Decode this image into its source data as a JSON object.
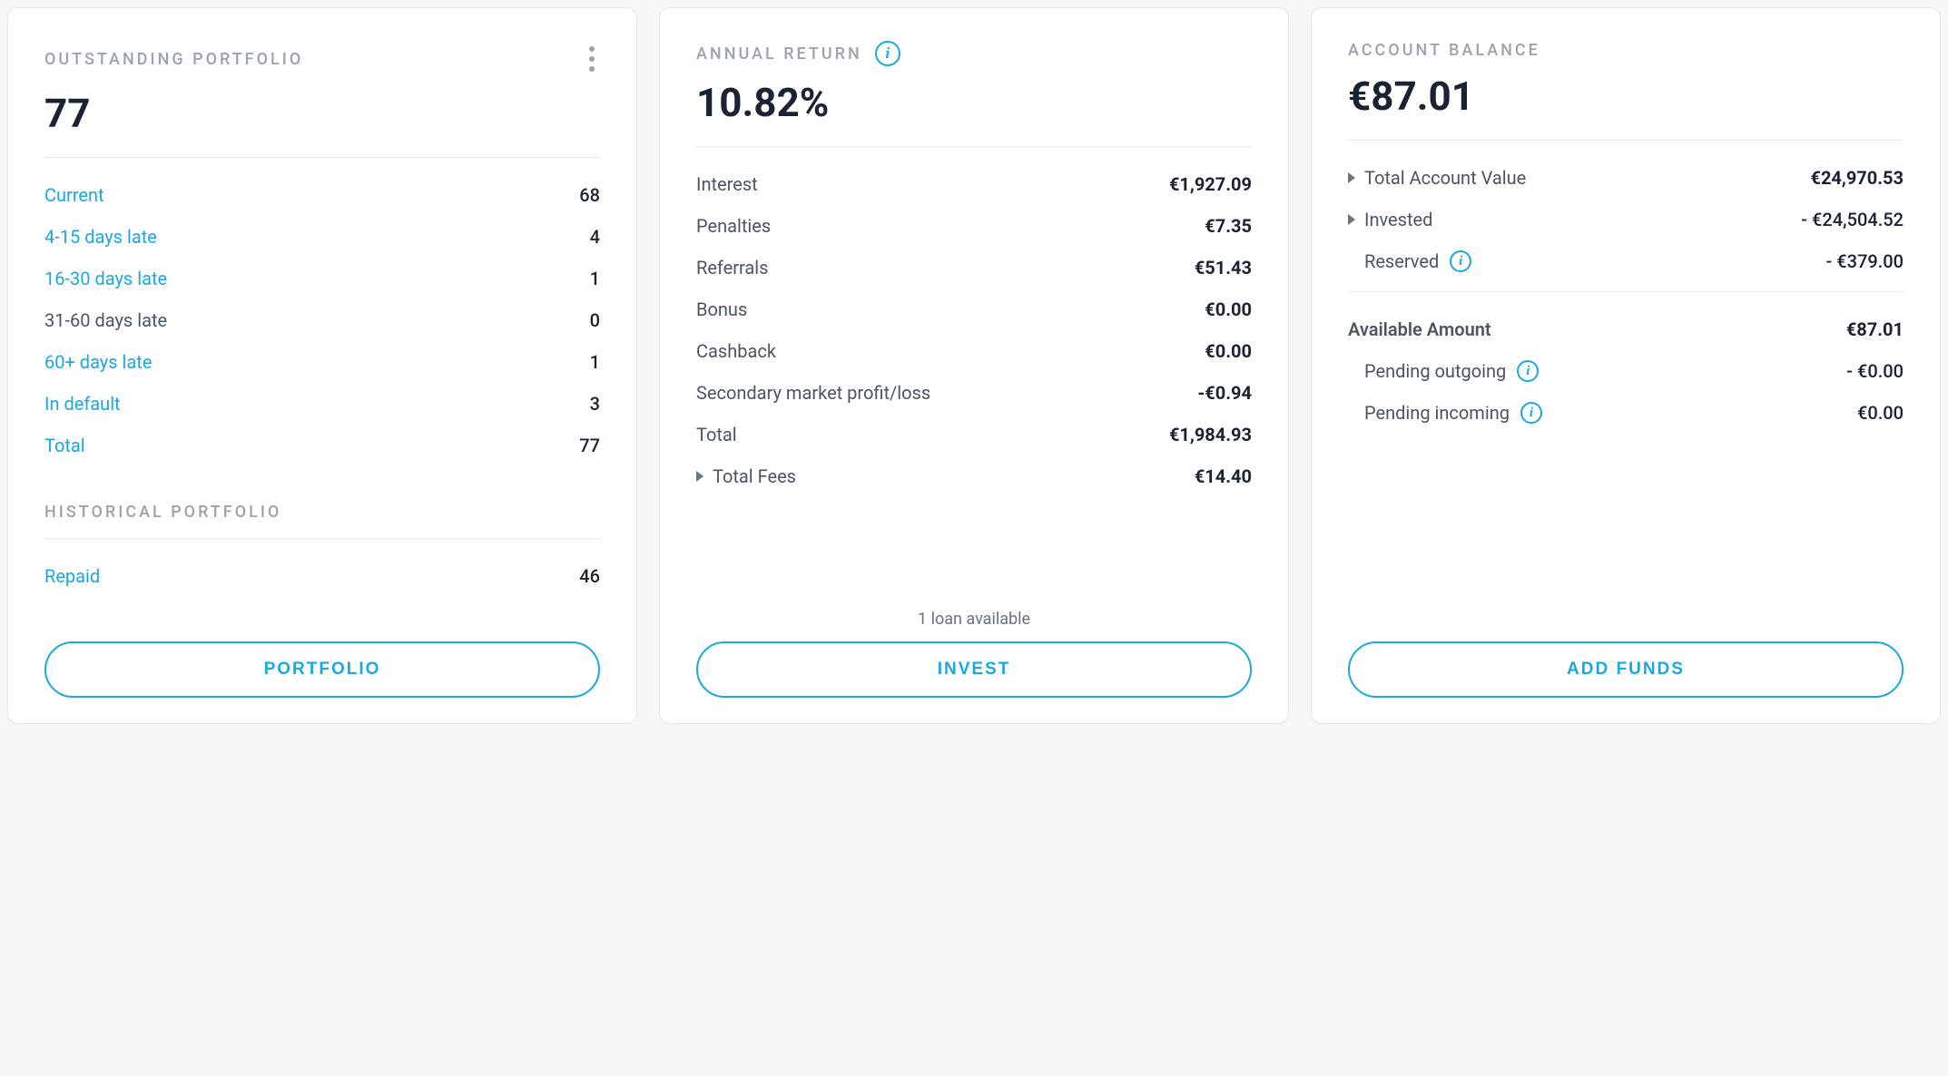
{
  "colors": {
    "accent": "#1ba7e0",
    "text_primary": "#1a2332",
    "text_secondary": "#4b5563",
    "text_muted": "#9aa3ae",
    "border": "#e5e7eb",
    "card_bg": "#ffffff",
    "page_bg": "#f5f6f8"
  },
  "portfolio": {
    "title": "OUTSTANDING PORTFOLIO",
    "value": "77",
    "rows": [
      {
        "label": "Current",
        "value": "68",
        "link": true
      },
      {
        "label": "4-15 days late",
        "value": "4",
        "link": true
      },
      {
        "label": "16-30 days late",
        "value": "1",
        "link": true
      },
      {
        "label": "31-60 days late",
        "value": "0",
        "link": false
      },
      {
        "label": "60+ days late",
        "value": "1",
        "link": true
      },
      {
        "label": "In default",
        "value": "3",
        "link": true
      },
      {
        "label": "Total",
        "value": "77",
        "link": true
      }
    ],
    "historical_title": "HISTORICAL PORTFOLIO",
    "historical_rows": [
      {
        "label": "Repaid",
        "value": "46",
        "link": true
      }
    ],
    "button": "PORTFOLIO"
  },
  "annual_return": {
    "title": "ANNUAL RETURN",
    "value": "10.82%",
    "rows": [
      {
        "label": "Interest",
        "value": "€1,927.09"
      },
      {
        "label": "Penalties",
        "value": "€7.35"
      },
      {
        "label": "Referrals",
        "value": "€51.43"
      },
      {
        "label": "Bonus",
        "value": "€0.00"
      },
      {
        "label": "Cashback",
        "value": "€0.00"
      },
      {
        "label": "Secondary market profit/loss",
        "value": "-€0.94"
      },
      {
        "label": "Total",
        "value": "€1,984.93"
      }
    ],
    "fees": {
      "label": "Total Fees",
      "value": "€14.40"
    },
    "footer_note": "1 loan available",
    "button": "INVEST"
  },
  "balance": {
    "title": "ACCOUNT BALANCE",
    "value": "€87.01",
    "top_rows": [
      {
        "label": "Total Account Value",
        "value": "€24,970.53",
        "arrow": true,
        "bold_value": true
      },
      {
        "label": "Invested",
        "value": "- €24,504.52",
        "arrow": true
      },
      {
        "label": "Reserved",
        "value": "- €379.00",
        "info": true
      }
    ],
    "bottom_rows": [
      {
        "label": "Available Amount",
        "value": "€87.01",
        "bold_label": true,
        "bold_value": true
      },
      {
        "label": "Pending outgoing",
        "value": "- €0.00",
        "info": true
      },
      {
        "label": "Pending incoming",
        "value": "€0.00",
        "info": true
      }
    ],
    "button": "ADD FUNDS"
  }
}
